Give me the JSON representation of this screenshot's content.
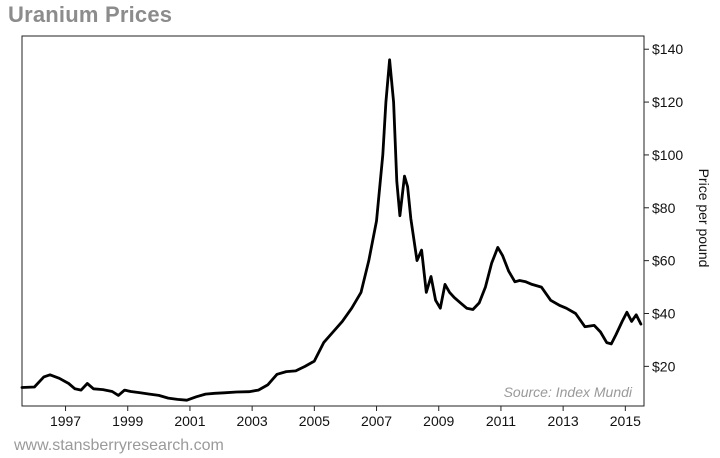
{
  "page": {
    "title": "Uranium Prices",
    "source_note": "Source: Index Mundi",
    "footer": "www.stansberryresearch.com"
  },
  "chart_data": {
    "type": "line",
    "title": "Uranium Prices",
    "xlabel": "",
    "ylabel": "Price per pound",
    "y_axis_side": "right",
    "xlim": [
      1995.6,
      2015.6
    ],
    "ylim": [
      5,
      145
    ],
    "x_ticks": [
      1997,
      1999,
      2001,
      2003,
      2005,
      2007,
      2009,
      2011,
      2013,
      2015
    ],
    "x_tick_labels": [
      "1997",
      "1999",
      "2001",
      "2003",
      "2005",
      "2007",
      "2009",
      "2011",
      "2013",
      "2015"
    ],
    "y_ticks": [
      20,
      40,
      60,
      80,
      100,
      120,
      140
    ],
    "y_tick_labels": [
      "$20",
      "$40",
      "$60",
      "$80",
      "$100",
      "$120",
      "$140"
    ],
    "grid": false,
    "line_color": "#000000",
    "series": [
      {
        "x": [
          1995.6,
          1996.0,
          1996.3,
          1996.5,
          1996.8,
          1997.1,
          1997.3,
          1997.5,
          1997.7,
          1997.9,
          1998.2,
          1998.5,
          1998.7,
          1998.9,
          1999.1,
          1999.4,
          1999.7,
          2000.0,
          2000.3,
          2000.6,
          2000.9,
          2001.2,
          2001.5,
          2001.8,
          2002.1,
          2002.5,
          2002.9,
          2003.2,
          2003.5,
          2003.8,
          2004.1,
          2004.4,
          2004.7,
          2005.0,
          2005.3,
          2005.6,
          2005.9,
          2006.2,
          2006.5,
          2006.75,
          2007.0,
          2007.2,
          2007.3,
          2007.42,
          2007.55,
          2007.65,
          2007.75,
          2007.9,
          2008.0,
          2008.1,
          2008.3,
          2008.45,
          2008.6,
          2008.75,
          2008.9,
          2009.05,
          2009.2,
          2009.35,
          2009.5,
          2009.7,
          2009.9,
          2010.1,
          2010.3,
          2010.5,
          2010.7,
          2010.9,
          2011.05,
          2011.25,
          2011.45,
          2011.6,
          2011.8,
          2012.0,
          2012.3,
          2012.6,
          2012.9,
          2013.1,
          2013.4,
          2013.7,
          2014.0,
          2014.2,
          2014.4,
          2014.55,
          2014.7,
          2014.9,
          2015.05,
          2015.2,
          2015.35,
          2015.5
        ],
        "y": [
          12,
          12.2,
          16,
          16.8,
          15.5,
          13.5,
          11.5,
          11,
          13.5,
          11.5,
          11.2,
          10.5,
          9,
          11,
          10.5,
          10,
          9.5,
          9,
          8,
          7.5,
          7.2,
          8.5,
          9.5,
          9.8,
          10,
          10.3,
          10.4,
          11,
          13,
          17,
          18,
          18.3,
          20,
          22,
          29,
          33,
          37,
          42,
          48,
          60,
          75,
          100,
          120,
          136,
          120,
          90,
          77,
          92,
          88,
          76,
          60,
          64,
          48,
          54,
          45,
          42,
          51,
          48,
          46,
          44,
          42,
          41.5,
          44,
          50,
          59,
          65,
          62,
          56,
          52,
          52.5,
          52,
          51,
          50,
          45,
          43,
          42,
          40,
          35,
          35.5,
          33,
          29,
          28.5,
          32,
          37,
          40.5,
          37,
          39.5,
          36
        ]
      }
    ]
  }
}
